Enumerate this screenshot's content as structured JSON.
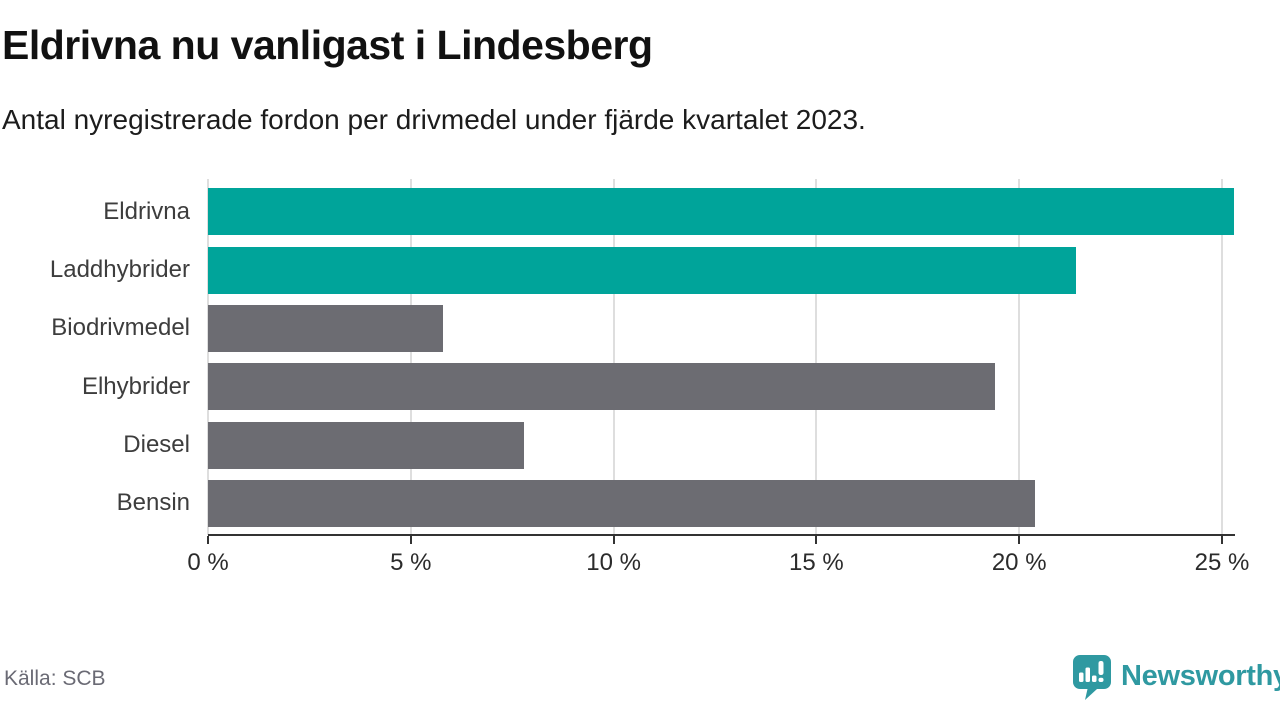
{
  "colors": {
    "accent": "#00a49a",
    "muted": "#6c6c72",
    "brand": "#2f99a1",
    "grid": "#dedede",
    "axis": "#333333"
  },
  "footer": {
    "source": "Källa: SCB",
    "brand_name": "Newsworthy"
  },
  "chart_data": {
    "type": "bar",
    "orientation": "horizontal",
    "title": "Eldrivna nu vanligast i Lindesberg",
    "subtitle": "Antal nyregistrerade fordon per drivmedel under fjärde kvartalet 2023.",
    "categories": [
      "Eldrivna",
      "Laddhybrider",
      "Biodrivmedel",
      "Elhybrider",
      "Diesel",
      "Bensin"
    ],
    "values": [
      25.3,
      21.4,
      5.8,
      19.4,
      7.8,
      20.4
    ],
    "bar_color_roles": [
      "accent",
      "accent",
      "muted",
      "muted",
      "muted",
      "muted"
    ],
    "unit": "%",
    "xlabel": "",
    "ylabel": "",
    "xlim": [
      0,
      25
    ],
    "x_ticks": [
      0,
      5,
      10,
      15,
      20,
      25
    ],
    "x_tick_labels": [
      "0 %",
      "5 %",
      "10 %",
      "15 %",
      "20 %",
      "25 %"
    ],
    "grid": true,
    "legend": "none"
  }
}
